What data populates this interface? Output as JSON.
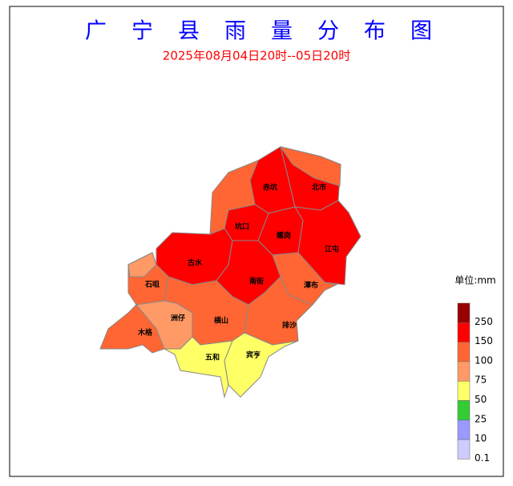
{
  "title": "广宁县雨量分布图",
  "subtitle": "2025年08月04日20时--05日20时",
  "regions": [
    {
      "name": "赤坑",
      "color": "#ff0000"
    },
    {
      "name": "北市",
      "color": "#ff0000"
    },
    {
      "name": "坑口",
      "color": "#ff0000"
    },
    {
      "name": "螺岗",
      "color": "#ff0000"
    },
    {
      "name": "江屯",
      "color": "#ff0000"
    },
    {
      "name": "古水",
      "color": "#ff0000"
    },
    {
      "name": "石咀",
      "color": "#ff6633"
    },
    {
      "name": "南街",
      "color": "#ff0000"
    },
    {
      "name": "潭布",
      "color": "#ff6633"
    },
    {
      "name": "洲仔",
      "color": "#ff9966"
    },
    {
      "name": "横山",
      "color": "#ff6633"
    },
    {
      "name": "排沙",
      "color": "#ff6633"
    },
    {
      "name": "木格",
      "color": "#ff6633"
    },
    {
      "name": "五和",
      "color": "#ffff66"
    },
    {
      "name": "宾亨",
      "color": "#ffff66"
    }
  ],
  "legend": {
    "unit": "单位:mm",
    "colors": [
      "#990000",
      "#ff0000",
      "#ff6633",
      "#ff9966",
      "#ffff66",
      "#33cc33",
      "#9999ff",
      "#ccccff"
    ],
    "labels": [
      "250",
      "150",
      "100",
      "75",
      "50",
      "25",
      "10",
      "0.1"
    ]
  }
}
